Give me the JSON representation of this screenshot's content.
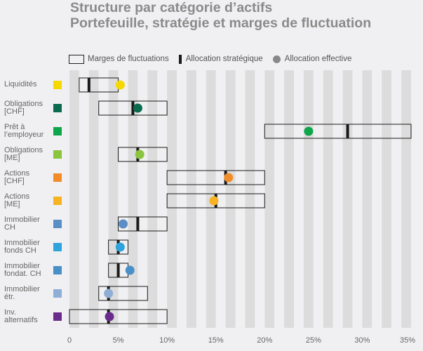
{
  "title": {
    "line1": "Structure par catégorie d’actifs",
    "line2": "Portefeuille, stratégie et marges de fluctuation"
  },
  "legend": {
    "range_label": "Marges de fluctuations",
    "strategic_label": "Allocation stratégique",
    "effective_label": "Allocation effective"
  },
  "chart_data": {
    "type": "range-dot",
    "title": "Structure par catégorie d’actifs",
    "subtitle": "Portefeuille, stratégie et marges de fluctuation",
    "xlim": [
      0,
      35
    ],
    "xticks": [
      0,
      5,
      10,
      15,
      20,
      25,
      30,
      35
    ],
    "xtick_labels": [
      "0",
      "5%",
      "10%",
      "15%",
      "20%",
      "25%",
      "30%",
      "35%"
    ],
    "grid": "vertical alternating bands",
    "legend_position": "top",
    "series_names": [
      "Marges de fluctuations",
      "Allocation stratégique",
      "Allocation effective"
    ],
    "categories": [
      {
        "label": "Liquidités",
        "color": "#f5d800",
        "min": 1,
        "max": 5,
        "strategic": 2,
        "effective": 5.2
      },
      {
        "label": "Obligations [CHF]",
        "color": "#0b6b4f",
        "min": 3,
        "max": 10,
        "strategic": 6.5,
        "effective": 7
      },
      {
        "label": "Prêt à l’employeur",
        "color": "#0ea64a",
        "min": 20,
        "max": 35,
        "strategic": 28.5,
        "effective": 24.5
      },
      {
        "label": "Obligations [ME]",
        "color": "#8bc43f",
        "min": 5,
        "max": 10,
        "strategic": 7,
        "effective": 7.2
      },
      {
        "label": "Actions [CHF]",
        "color": "#f28c28",
        "min": 10,
        "max": 20,
        "strategic": 16,
        "effective": 16.3
      },
      {
        "label": "Actions [ME]",
        "color": "#f7b322",
        "min": 10,
        "max": 20,
        "strategic": 15,
        "effective": 14.8
      },
      {
        "label": "Immobilier CH",
        "color": "#5b8ec4",
        "min": 5,
        "max": 10,
        "strategic": 7,
        "effective": 5.5
      },
      {
        "label": "Immobilier fonds CH",
        "color": "#2fa3dc",
        "min": 4,
        "max": 6,
        "strategic": 5,
        "effective": 5.2
      },
      {
        "label": "Immobilier fondat. CH",
        "color": "#4a90c8",
        "min": 4,
        "max": 6,
        "strategic": 5,
        "effective": 6.2
      },
      {
        "label": "Immobilier étr.",
        "color": "#8eaed6",
        "min": 3,
        "max": 8,
        "strategic": 4,
        "effective": 4
      },
      {
        "label": "Inv. alternatifs",
        "color": "#6a2c8c",
        "min": 0,
        "max": 10,
        "strategic": 4,
        "effective": 4.1
      }
    ]
  },
  "colors": {
    "band_dark": "#dcdcdc",
    "band_light": "#f0f0f2",
    "text": "#666666",
    "title": "#8a8a8a"
  },
  "category_lines": [
    [
      "Liquidités"
    ],
    [
      "Obligations",
      "[CHF]"
    ],
    [
      "Prêt à",
      "l’employeur"
    ],
    [
      "Obligations",
      "[ME]"
    ],
    [
      "Actions",
      "[CHF]"
    ],
    [
      "Actions",
      "[ME]"
    ],
    [
      "Immobilier",
      "CH"
    ],
    [
      "Immobilier",
      "fonds CH"
    ],
    [
      "Immobilier",
      "fondat. CH"
    ],
    [
      "Immobilier",
      "étr."
    ],
    [
      "Inv.",
      "alternatifs"
    ]
  ]
}
